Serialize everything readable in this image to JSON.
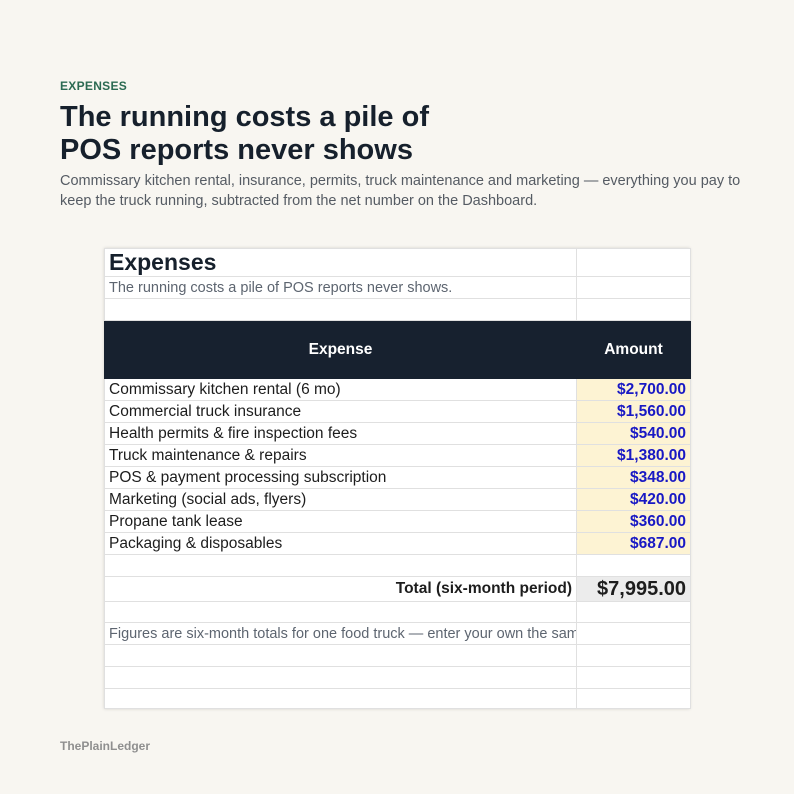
{
  "eyebrow": "EXPENSES",
  "title_lines": [
    "The running costs a pile of",
    "POS reports never shows"
  ],
  "description": "Commissary kitchen rental, insurance, permits, truck maintenance and marketing — everything you pay to keep the truck running, subtracted from the net number on the Dashboard.",
  "sheet": {
    "title": "Expenses",
    "subtitle": "The running costs a pile of POS reports never shows.",
    "header": [
      "Expense",
      "Amount"
    ],
    "rows": [
      [
        "Commissary kitchen rental (6 mo)",
        "$2,700.00"
      ],
      [
        "Commercial truck insurance",
        "$1,560.00"
      ],
      [
        "Health permits & fire inspection fees",
        "$540.00"
      ],
      [
        "Truck maintenance & repairs",
        "$1,380.00"
      ],
      [
        "POS & payment processing subscription",
        "$348.00"
      ],
      [
        "Marketing (social ads, flyers)",
        "$420.00"
      ],
      [
        "Propane tank lease",
        "$360.00"
      ],
      [
        "Packaging & disposables",
        "$687.00"
      ]
    ],
    "total": {
      "label": "Total (six-month period)",
      "value": "$7,995.00"
    },
    "note": "Figures are six-month totals for one food truck — enter your own the same way."
  },
  "footer": "ThePlainLedger"
}
